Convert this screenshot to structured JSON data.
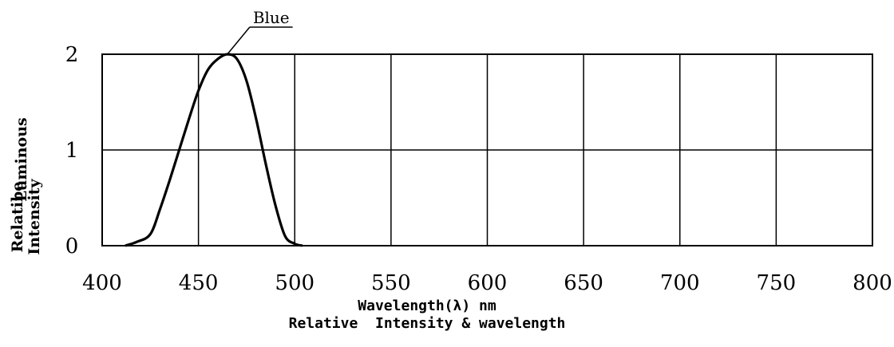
{
  "chart_data": {
    "type": "line",
    "title": "Relative  Intensity & wavelength",
    "xlabel": "Wavelength(λ) nm",
    "ylabel_lines": [
      "Luminous",
      "Relatibe",
      "Intensity"
    ],
    "xlim": [
      400,
      800
    ],
    "ylim": [
      0,
      2
    ],
    "x_ticks": [
      400,
      450,
      500,
      550,
      600,
      650,
      700,
      750,
      800
    ],
    "y_ticks": [
      0,
      1,
      2
    ],
    "x_tick_labels": [
      "400",
      "450",
      "500",
      "550",
      "600",
      "650",
      "700",
      "750",
      "800"
    ],
    "y_tick_labels": [
      "0",
      "1",
      "2"
    ],
    "grid": true,
    "series": [
      {
        "name": "Blue",
        "color": "#000000",
        "x": [
          412,
          418,
          425,
          430,
          435,
          440,
          445,
          450,
          455,
          460,
          465,
          470,
          475,
          480,
          485,
          490,
          495,
          500,
          504
        ],
        "y": [
          0.0,
          0.04,
          0.12,
          0.38,
          0.68,
          1.0,
          1.32,
          1.62,
          1.84,
          1.95,
          2.0,
          1.95,
          1.72,
          1.32,
          0.85,
          0.42,
          0.1,
          0.02,
          0.0
        ]
      }
    ],
    "annotations": [
      {
        "text": "Blue",
        "series": "Blue",
        "x": 465,
        "y": 2.0
      }
    ]
  }
}
